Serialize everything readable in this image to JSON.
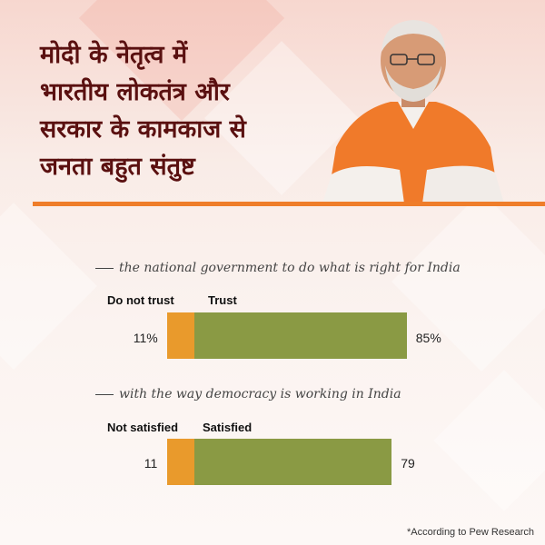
{
  "headline": {
    "lines": [
      "मोदी के नेतृत्व में",
      "भारतीय लोकतंत्र और",
      "सरकार के कामकाज से",
      "जनता बहुत संतुष्ट"
    ]
  },
  "colors": {
    "negative_bar": "#e99a2c",
    "positive_bar": "#8a9a44",
    "headline_text": "#5a1010",
    "divider": "#ef7d2a"
  },
  "chart_data": [
    {
      "type": "bar",
      "orientation": "horizontal-stacked",
      "title": "the national government to do what is right for India",
      "series": [
        {
          "name": "Do not trust",
          "value": 11,
          "label": "11%"
        },
        {
          "name": "Trust",
          "value": 85,
          "label": "85%"
        }
      ],
      "xlim": [
        0,
        100
      ]
    },
    {
      "type": "bar",
      "orientation": "horizontal-stacked",
      "title": "with the way democracy is working in India",
      "series": [
        {
          "name": "Not satisfied",
          "value": 11,
          "label": "11"
        },
        {
          "name": "Satisfied",
          "value": 79,
          "label": "79"
        }
      ],
      "xlim": [
        0,
        100
      ]
    }
  ],
  "footnote": "*According to Pew Research"
}
